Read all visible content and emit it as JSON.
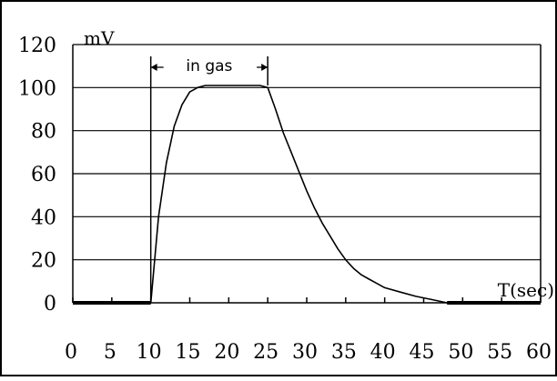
{
  "chart_data": {
    "type": "line",
    "title": "",
    "xlabel": "T(sec)",
    "ylabel": "mV",
    "xlim": [
      0,
      60
    ],
    "ylim": [
      0,
      120
    ],
    "x_ticks": [
      "0",
      "5",
      "10",
      "15",
      "20",
      "25",
      "30",
      "35",
      "40",
      "45",
      "50",
      "55",
      "60"
    ],
    "y_ticks": [
      "0",
      "20",
      "40",
      "60",
      "80",
      "100",
      "120"
    ],
    "grid": true,
    "annotations": [
      {
        "text": "in gas",
        "x_start": 10,
        "x_end": 25
      }
    ],
    "series": [
      {
        "x": [
          0,
          10,
          11,
          12,
          13,
          14,
          15,
          16,
          17,
          18,
          20,
          22,
          24,
          25,
          26,
          27,
          28,
          29,
          30,
          31,
          32,
          33,
          34,
          35,
          36,
          37,
          38,
          39,
          40,
          42,
          44,
          46,
          48,
          60
        ],
        "y": [
          0,
          0,
          40,
          65,
          82,
          92,
          98,
          100,
          101,
          101,
          101,
          101,
          101,
          100,
          90,
          79,
          70,
          61,
          52,
          44,
          37,
          31,
          25,
          20,
          16,
          13,
          11,
          9,
          7,
          5,
          3,
          1.5,
          0,
          0
        ]
      }
    ]
  }
}
